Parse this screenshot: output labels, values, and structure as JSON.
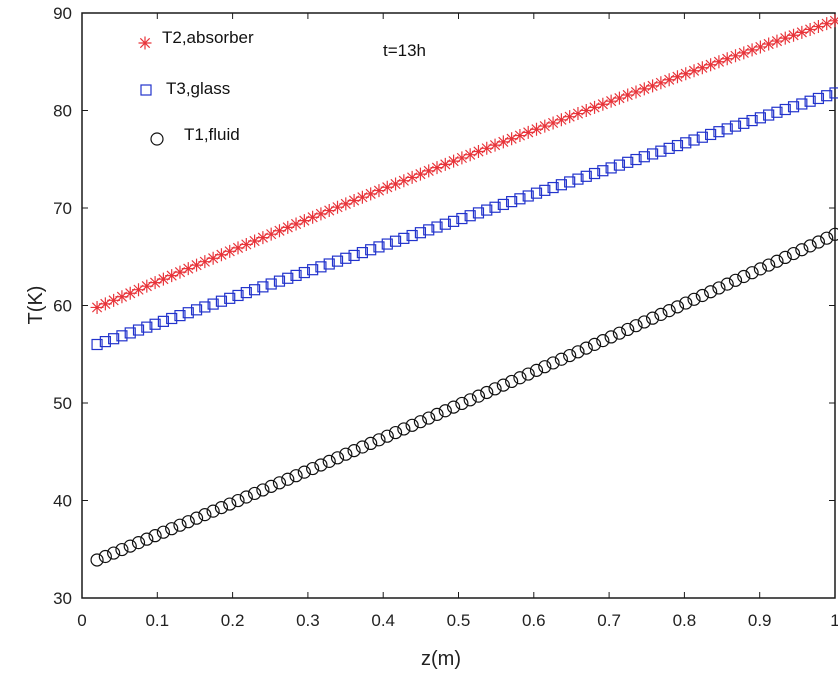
{
  "chart_data": {
    "type": "scatter",
    "title": "",
    "xlabel": "z(m)",
    "ylabel": "T(K)",
    "xlim": [
      0,
      1
    ],
    "ylim": [
      30,
      90
    ],
    "xticks": [
      0,
      0.1,
      0.2,
      0.3,
      0.4,
      0.5,
      0.6,
      0.7,
      0.8,
      0.9,
      1
    ],
    "xtick_labels": [
      "0",
      "0.1",
      "0.2",
      "0.3",
      "0.4",
      "0.5",
      "0.6",
      "0.7",
      "0.8",
      "0.9",
      "1"
    ],
    "yticks": [
      30,
      40,
      50,
      60,
      70,
      80,
      90
    ],
    "ytick_labels": [
      "30",
      "40",
      "50",
      "60",
      "70",
      "80",
      "90"
    ],
    "grid": false,
    "legend_position": "top-left",
    "annotation": "t=13h",
    "series": [
      {
        "name": "T2,absorber",
        "marker": "asterisk",
        "color": "#e8343a",
        "x_start": 0.02,
        "x_end": 1.0,
        "count": 90,
        "anchors": [
          [
            0.02,
            59.8
          ],
          [
            0.5,
            75.0
          ],
          [
            1.0,
            89.2
          ]
        ]
      },
      {
        "name": "T3,glass",
        "marker": "square",
        "color": "#2233cc",
        "x_start": 0.02,
        "x_end": 1.0,
        "count": 90,
        "anchors": [
          [
            0.02,
            56.0
          ],
          [
            0.5,
            68.8
          ],
          [
            1.0,
            81.8
          ]
        ]
      },
      {
        "name": "T1,fluid",
        "marker": "circle",
        "color": "#111111",
        "x_start": 0.02,
        "x_end": 1.0,
        "count": 90,
        "anchors": [
          [
            0.02,
            33.9
          ],
          [
            0.5,
            49.8
          ],
          [
            1.0,
            67.3
          ]
        ]
      }
    ]
  }
}
